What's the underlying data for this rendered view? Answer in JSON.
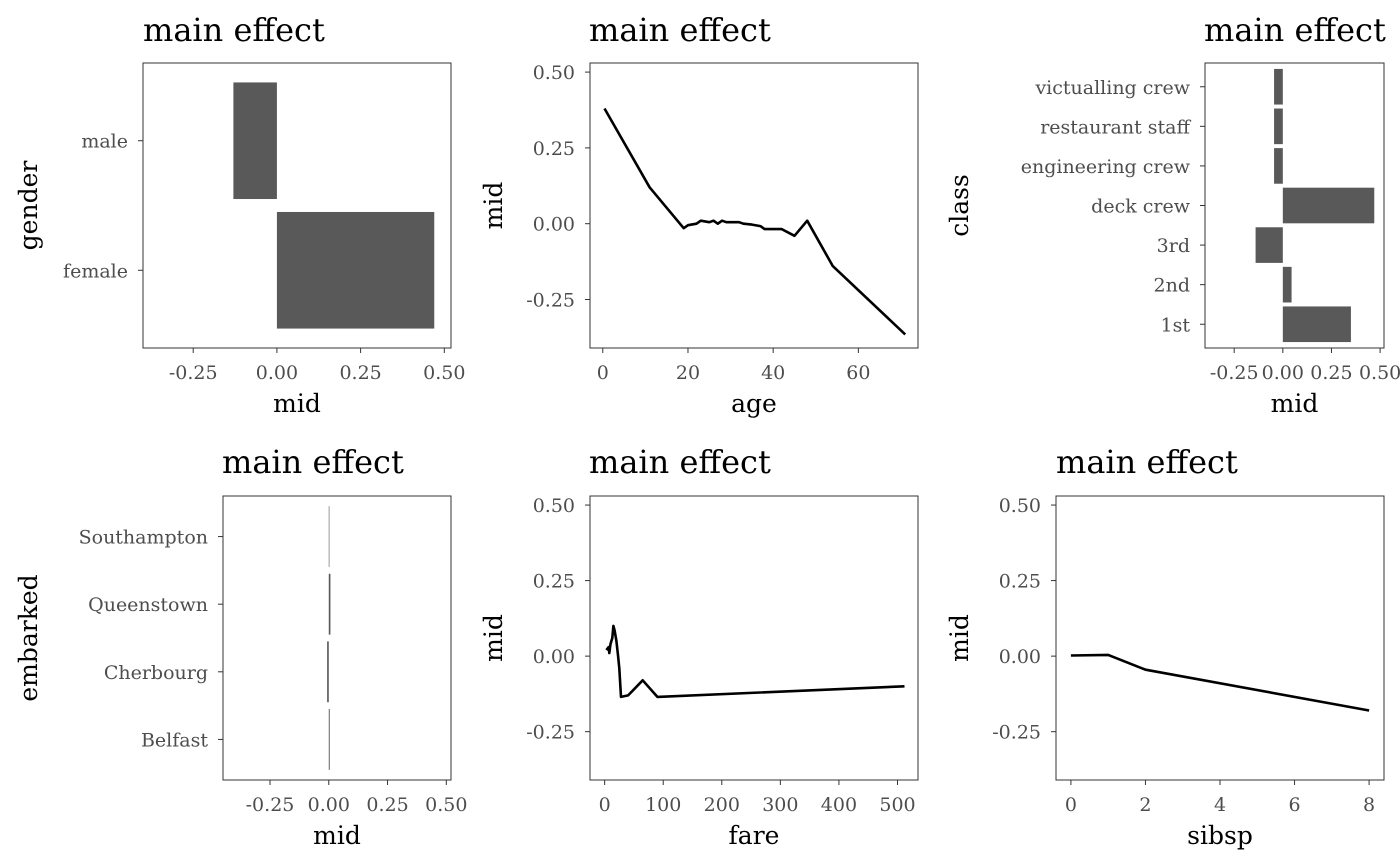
{
  "chart_data": [
    {
      "type": "bar",
      "orientation": "horizontal",
      "title": "main effect",
      "xlabel": "mid",
      "ylabel": "gender",
      "xlim": [
        -0.4,
        0.52
      ],
      "xticks": [
        -0.25,
        0,
        0.25,
        0.5
      ],
      "xtick_labels": [
        "-0.25",
        "0.00",
        "0.25",
        "0.50"
      ],
      "categories": [
        "male",
        "female"
      ],
      "values": [
        -0.13,
        0.47
      ],
      "grid": false
    },
    {
      "type": "line",
      "title": "main effect",
      "xlabel": "age",
      "ylabel": "mid",
      "xlim": [
        -3,
        74
      ],
      "ylim": [
        -0.41,
        0.53
      ],
      "xticks": [
        0,
        20,
        40,
        60
      ],
      "xtick_labels": [
        "0",
        "20",
        "40",
        "60"
      ],
      "yticks": [
        -0.25,
        0,
        0.25,
        0.5
      ],
      "ytick_labels": [
        "-0.25",
        "0.00",
        "0.25",
        "0.50"
      ],
      "x": [
        0.4,
        11,
        19,
        20,
        22,
        23,
        25,
        26,
        27,
        28,
        29,
        30,
        32,
        33,
        35,
        37,
        38,
        40,
        42,
        45,
        48,
        54,
        71
      ],
      "y": [
        0.38,
        0.12,
        -0.015,
        -0.005,
        0.0,
        0.01,
        0.005,
        0.01,
        0.0,
        0.01,
        0.005,
        0.005,
        0.005,
        0.0,
        -0.003,
        -0.008,
        -0.018,
        -0.018,
        -0.018,
        -0.04,
        0.01,
        -0.14,
        -0.365
      ],
      "grid": false
    },
    {
      "type": "bar",
      "orientation": "horizontal",
      "title": "main effect",
      "xlabel": "mid",
      "ylabel": "class",
      "xlim": [
        -0.4,
        0.52
      ],
      "xticks": [
        -0.25,
        0,
        0.25,
        0.5
      ],
      "xtick_labels": [
        "-0.25",
        "0.00",
        "0.25",
        "0.50"
      ],
      "categories": [
        "victualling crew",
        "restaurant staff",
        "engineering crew",
        "deck crew",
        "3rd",
        "2nd",
        "1st"
      ],
      "values": [
        -0.045,
        -0.045,
        -0.045,
        0.47,
        -0.14,
        0.045,
        0.35
      ],
      "grid": false
    },
    {
      "type": "bar",
      "orientation": "horizontal",
      "title": "main effect",
      "xlabel": "mid",
      "ylabel": "embarked",
      "xlim": [
        -0.45,
        0.52
      ],
      "xticks": [
        -0.25,
        0,
        0.25,
        0.5
      ],
      "xtick_labels": [
        "-0.25",
        "0.00",
        "0.25",
        "0.50"
      ],
      "categories": [
        "Southampton",
        "Queenstown",
        "Cherbourg",
        "Belfast"
      ],
      "values": [
        0.0,
        0.007,
        -0.007,
        0.004
      ],
      "grid": false
    },
    {
      "type": "line",
      "title": "main effect",
      "xlabel": "fare",
      "ylabel": "mid",
      "xlim": [
        -25,
        535
      ],
      "ylim": [
        -0.41,
        0.53
      ],
      "xticks": [
        0,
        100,
        200,
        300,
        400,
        500
      ],
      "xtick_labels": [
        "0",
        "100",
        "200",
        "300",
        "400",
        "500"
      ],
      "yticks": [
        -0.25,
        0,
        0.25,
        0.5
      ],
      "ytick_labels": [
        "-0.25",
        "0.00",
        "0.25",
        "0.50"
      ],
      "x": [
        3,
        7,
        8,
        10,
        13,
        15,
        17,
        20,
        23,
        25,
        28,
        40,
        65,
        90,
        512
      ],
      "y": [
        0.02,
        0.03,
        0.01,
        0.04,
        0.06,
        0.1,
        0.085,
        0.05,
        0.0,
        -0.04,
        -0.135,
        -0.13,
        -0.08,
        -0.135,
        -0.1
      ],
      "grid": false
    },
    {
      "type": "line",
      "title": "main effect",
      "xlabel": "sibsp",
      "ylabel": "mid",
      "xlim": [
        -0.4,
        8.4
      ],
      "ylim": [
        -0.41,
        0.53
      ],
      "xticks": [
        0,
        2,
        4,
        6,
        8
      ],
      "xtick_labels": [
        "0",
        "2",
        "4",
        "6",
        "8"
      ],
      "yticks": [
        -0.25,
        0,
        0.25,
        0.5
      ],
      "ytick_labels": [
        "-0.25",
        "0.00",
        "0.25",
        "0.50"
      ],
      "x": [
        0,
        1,
        2,
        8
      ],
      "y": [
        0.002,
        0.004,
        -0.045,
        -0.18
      ],
      "grid": false
    }
  ]
}
